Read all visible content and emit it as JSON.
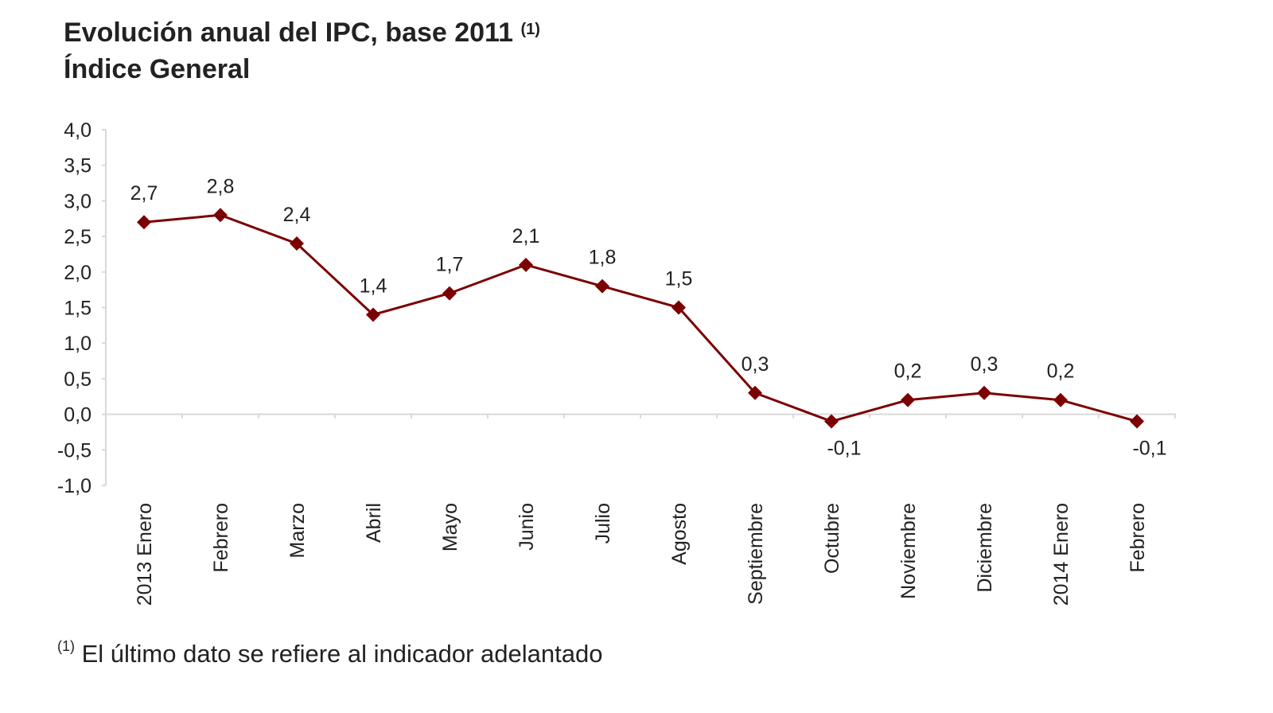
{
  "chart_data": {
    "type": "line",
    "title": "Evolución anual del IPC, base 2011",
    "title_note_marker": "(1)",
    "subtitle": "Índice General",
    "categories": [
      "2013 Enero",
      "Febrero",
      "Marzo",
      "Abril",
      "Mayo",
      "Junio",
      "Julio",
      "Agosto",
      "Septiembre",
      "Octubre",
      "Noviembre",
      "Diciembre",
      "2014 Enero",
      "Febrero"
    ],
    "values": [
      2.7,
      2.8,
      2.4,
      1.4,
      1.7,
      2.1,
      1.8,
      1.5,
      0.3,
      -0.1,
      0.2,
      0.3,
      0.2,
      -0.1
    ],
    "data_labels": [
      "2,7",
      "2,8",
      "2,4",
      "1,4",
      "1,7",
      "2,1",
      "1,8",
      "1,5",
      "0,3",
      "-0,1",
      "0,2",
      "0,3",
      "0,2",
      "-0,1"
    ],
    "ylim": [
      -1.0,
      4.0
    ],
    "yticks": [
      "4,0",
      "3,5",
      "3,0",
      "2,5",
      "2,0",
      "1,5",
      "1,0",
      "0,5",
      "0,0",
      "-0,5",
      "-1,0"
    ],
    "ytick_values": [
      4.0,
      3.5,
      3.0,
      2.5,
      2.0,
      1.5,
      1.0,
      0.5,
      0.0,
      -0.5,
      -1.0
    ],
    "xlabel": "",
    "ylabel": "",
    "grid": false,
    "marker": "diamond",
    "line_color": "#7b0000",
    "footnote_marker": "(1)",
    "footnote": "El último dato se refiere al indicador adelantado"
  }
}
